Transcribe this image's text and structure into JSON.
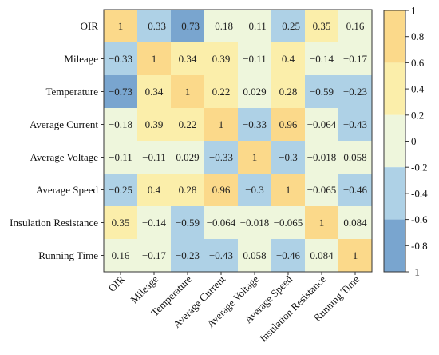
{
  "chart_data": {
    "type": "heatmap",
    "row_labels": [
      "OIR",
      "Mileage",
      "Temperature",
      "Average Current",
      "Average Voltage",
      "Average Speed",
      "Insulation Resistance",
      "Running Time"
    ],
    "col_labels": [
      "OIR",
      "Mileage",
      "Temperature",
      "Average Current",
      "Average Voltage",
      "Average Speed",
      "Insulation Resistance",
      "Running Time"
    ],
    "values": [
      [
        1,
        -0.33,
        -0.73,
        -0.18,
        -0.11,
        -0.25,
        0.35,
        0.16
      ],
      [
        -0.33,
        1,
        0.34,
        0.39,
        -0.11,
        0.4,
        -0.14,
        -0.17
      ],
      [
        -0.73,
        0.34,
        1,
        0.22,
        0.029,
        0.28,
        -0.59,
        -0.23
      ],
      [
        -0.18,
        0.39,
        0.22,
        1,
        -0.33,
        0.96,
        -0.064,
        -0.43
      ],
      [
        -0.11,
        -0.11,
        0.029,
        -0.33,
        1,
        -0.3,
        -0.018,
        0.058
      ],
      [
        -0.25,
        0.4,
        0.28,
        0.96,
        -0.3,
        1,
        -0.065,
        -0.46
      ],
      [
        0.35,
        -0.14,
        -0.59,
        -0.064,
        -0.018,
        -0.065,
        1,
        0.084
      ],
      [
        0.16,
        -0.17,
        -0.23,
        -0.43,
        0.058,
        -0.46,
        0.084,
        1
      ]
    ],
    "cell_text": [
      [
        "1",
        "−0.33",
        "−0.73",
        "−0.18",
        "−0.11",
        "−0.25",
        "0.35",
        "0.16"
      ],
      [
        "−0.33",
        "1",
        "0.34",
        "0.39",
        "−0.11",
        "0.4",
        "−0.14",
        "−0.17"
      ],
      [
        "−0.73",
        "0.34",
        "1",
        "0.22",
        "0.029",
        "0.28",
        "−0.59",
        "−0.23"
      ],
      [
        "−0.18",
        "0.39",
        "0.22",
        "1",
        "−0.33",
        "0.96",
        "−0.064",
        "−0.43"
      ],
      [
        "−0.11",
        "−0.11",
        "0.029",
        "−0.33",
        "1",
        "−0.3",
        "−0.018",
        "0.058"
      ],
      [
        "−0.25",
        "0.4",
        "0.28",
        "0.96",
        "−0.3",
        "1",
        "−0.065",
        "−0.46"
      ],
      [
        "0.35",
        "−0.14",
        "−0.59",
        "−0.064",
        "−0.018",
        "−0.065",
        "1",
        "0.084"
      ],
      [
        "0.16",
        "−0.17",
        "−0.23",
        "−0.43",
        "0.058",
        "−0.46",
        "0.084",
        "1"
      ]
    ],
    "colorbar": {
      "range": [
        -1,
        1
      ],
      "ticks": [
        1,
        0.8,
        0.6,
        0.4,
        0.2,
        0,
        -0.2,
        -0.4,
        -0.6,
        -0.8,
        -1
      ],
      "tick_labels": [
        "1",
        "0.8",
        "0.6",
        "0.4",
        "0.2",
        "0",
        "-0.2",
        "-0.4",
        "-0.6",
        "-0.8",
        "-1"
      ],
      "bins": [
        {
          "from": 0.6,
          "to": 1.0,
          "color": "#fbd98a"
        },
        {
          "from": 0.2,
          "to": 0.6,
          "color": "#fbeeaa"
        },
        {
          "from": -0.2,
          "to": 0.2,
          "color": "#eef6dc"
        },
        {
          "from": -0.6,
          "to": -0.2,
          "color": "#aed1e6"
        },
        {
          "from": -1.0,
          "to": -0.6,
          "color": "#79a5cf"
        }
      ],
      "position": "right"
    },
    "grid": false
  }
}
